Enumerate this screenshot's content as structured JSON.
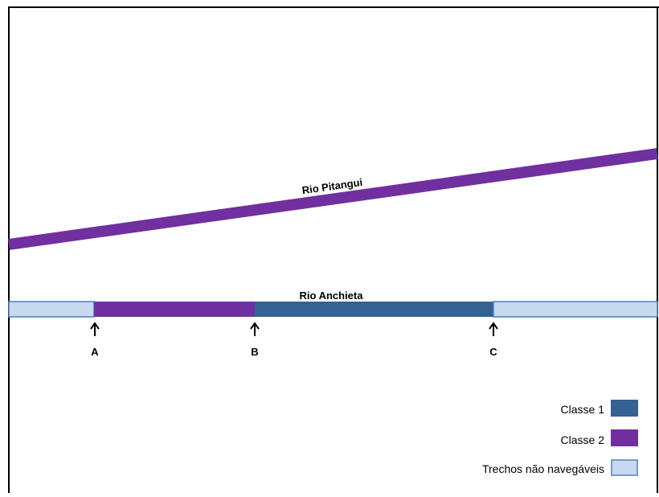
{
  "rivers": {
    "pitangui": {
      "label": "Rio Pitangui"
    },
    "anchieta": {
      "label": "Rio Anchieta"
    }
  },
  "points": [
    {
      "label": "A"
    },
    {
      "label": "B"
    },
    {
      "label": "C"
    }
  ],
  "legend": {
    "items": [
      {
        "label": "Classe 1",
        "color": "#356193"
      },
      {
        "label": "Classe 2",
        "color": "#7030a0"
      },
      {
        "label": "Trechos não navegáveis",
        "color": "#c6d9f1"
      }
    ]
  },
  "colors": {
    "class1": "#356193",
    "class2": "#7030a0",
    "non_navigable": "#c6d9f1",
    "non_navigable_border": "#4f81bd",
    "frame": "#000000"
  }
}
